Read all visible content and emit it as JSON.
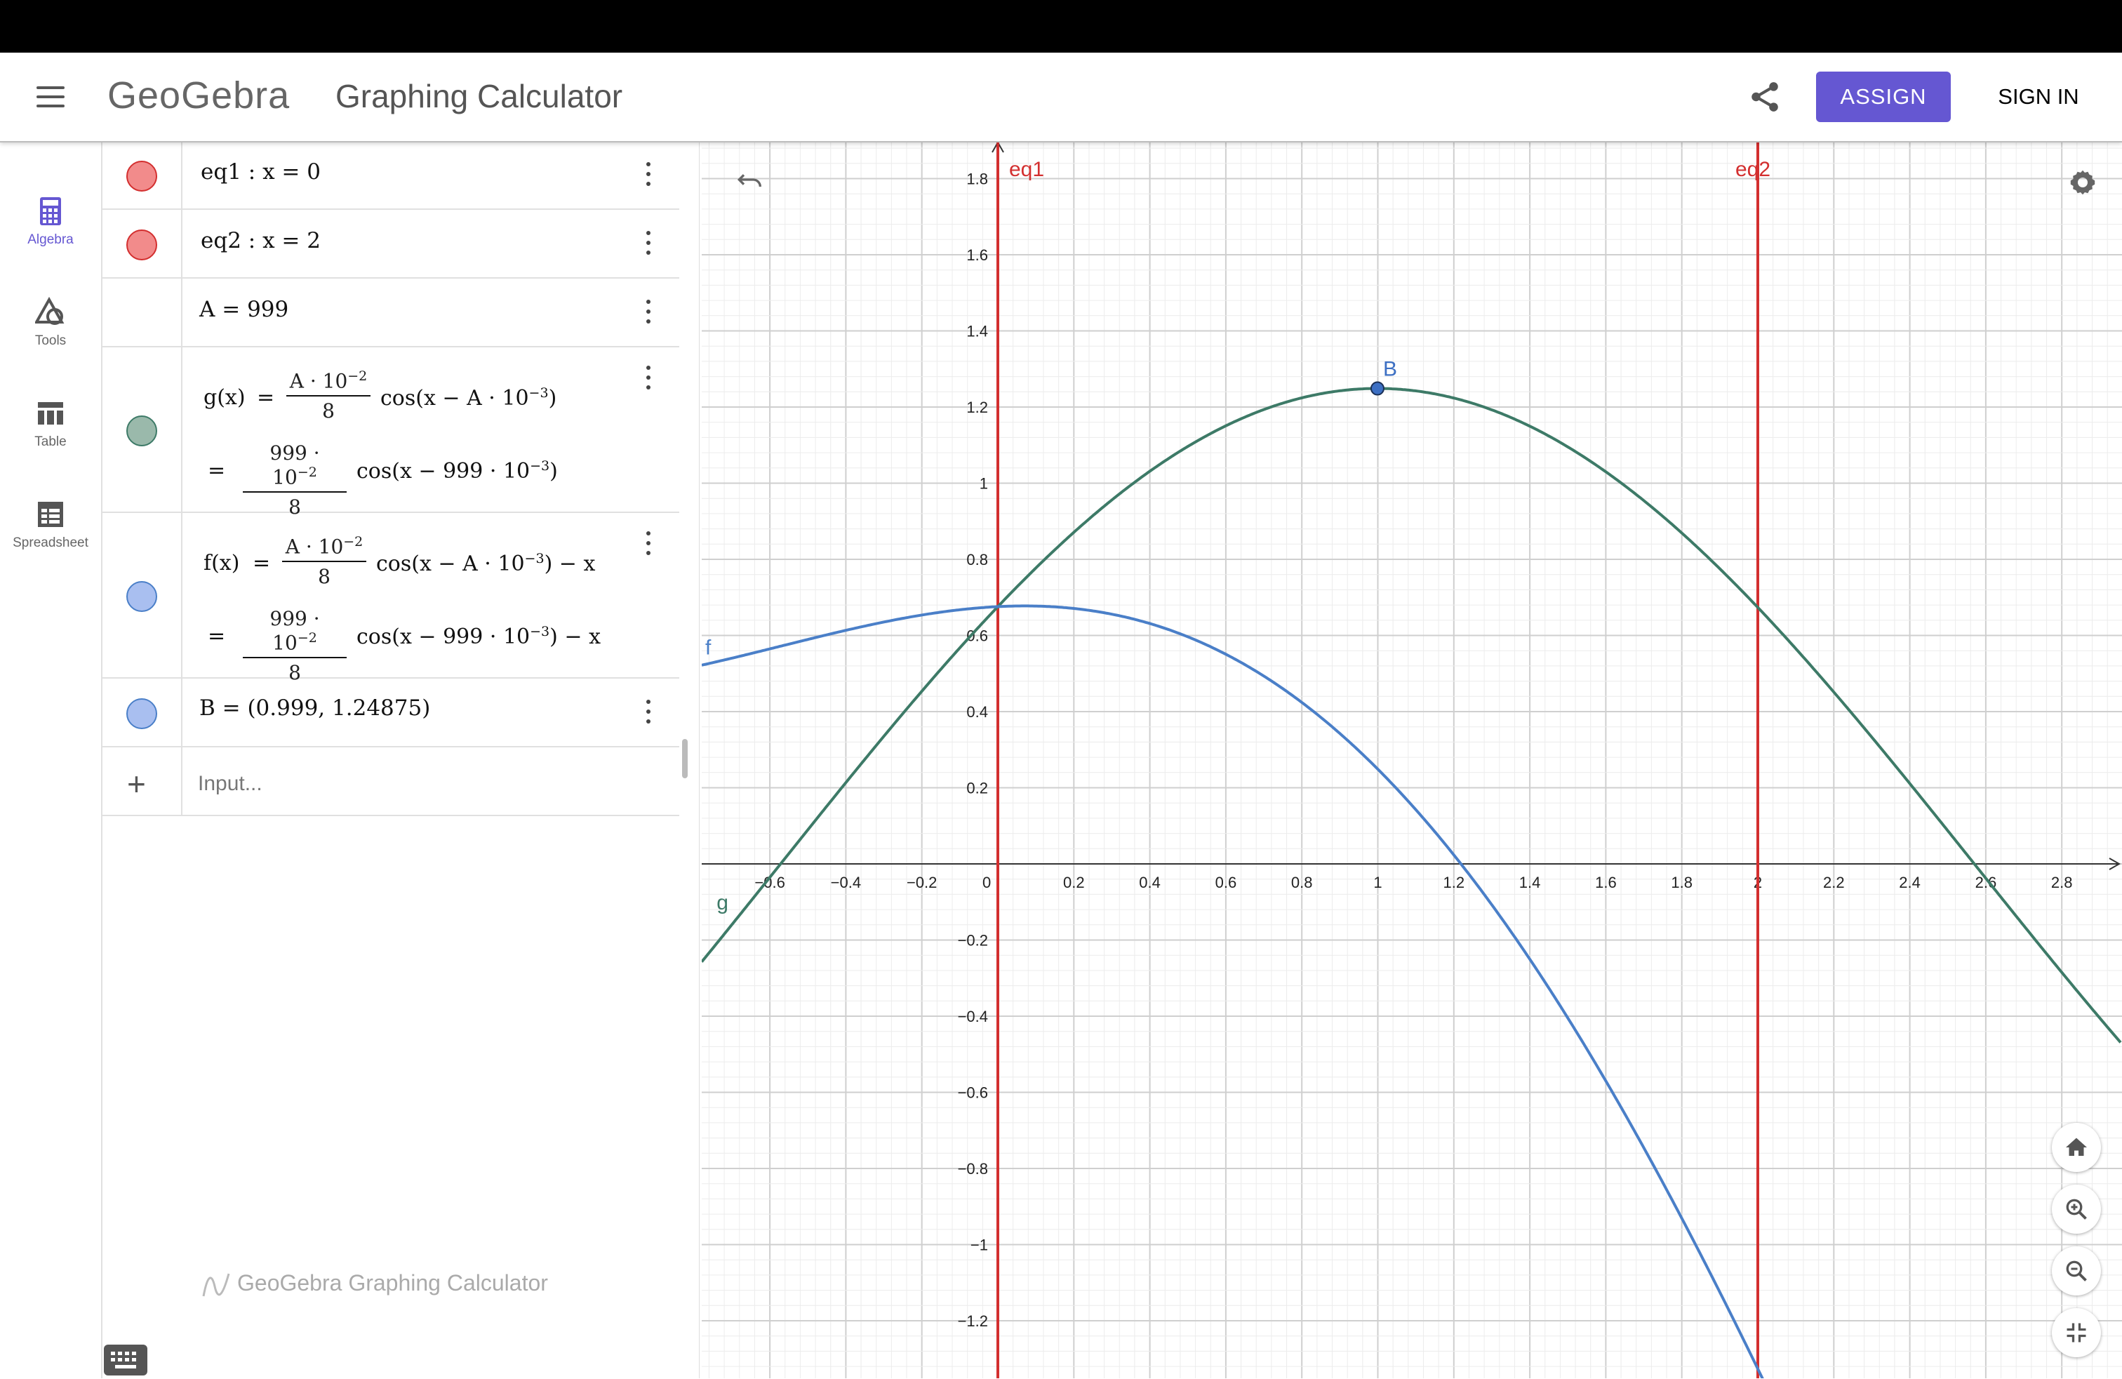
{
  "header": {
    "brand": "GeoGebra",
    "app_title": "Graphing Calculator",
    "assign_label": "ASSIGN",
    "signin_label": "SIGN IN"
  },
  "nav": {
    "items": [
      {
        "label": "Algebra",
        "icon": "calculator-icon",
        "active": true
      },
      {
        "label": "Tools",
        "icon": "shapes-icon",
        "active": false
      },
      {
        "label": "Table",
        "icon": "table-icon",
        "active": false
      },
      {
        "label": "Spreadsheet",
        "icon": "spreadsheet-icon",
        "active": false
      }
    ]
  },
  "algebra": {
    "eq1": "eq1 : x = 0",
    "eq2": "eq2 : x = 2",
    "a_def": "A = 999",
    "g": {
      "lhs": "g(x)",
      "num": "A · 10",
      "num_exp": "−2",
      "den": "8",
      "cos": "cos(x − A · 10",
      "cos_exp": "−3",
      "num2": "999 · 10",
      "cos2": "cos(x − 999 · 10"
    },
    "f": {
      "lhs": "f(x)",
      "tail": ") − x"
    },
    "b_point": "B = (0.999, 1.24875)",
    "input_placeholder": "Input...",
    "watermark": "GeoGebra Graphing Calculator"
  },
  "graph": {
    "labels": {
      "eq1": "eq1",
      "eq2": "eq2",
      "point_b": "B",
      "curve_f": "f",
      "curve_g": "g"
    },
    "x_ticks": [
      "−0.6",
      "−0.4",
      "−0.2",
      "0",
      "0.2",
      "0.4",
      "0.6",
      "0.8",
      "1",
      "1.2",
      "1.4",
      "1.6",
      "1.8",
      "2",
      "2.2",
      "2.4",
      "2.6",
      "2.8"
    ],
    "y_ticks": [
      "1.8",
      "1.6",
      "1.4",
      "1.2",
      "1",
      "0.8",
      "0.6",
      "0.4",
      "0.2",
      "−0.2",
      "−0.4",
      "−0.6",
      "−0.8",
      "−1",
      "−1.2"
    ],
    "colors": {
      "line": "#d32f2f",
      "curve_f": "#4a7fc8",
      "curve_g": "#3d7a67",
      "marble_line": "#f28b8b",
      "marble_f": "#a9bff0",
      "marble_g": "#9ab9ab"
    }
  }
}
